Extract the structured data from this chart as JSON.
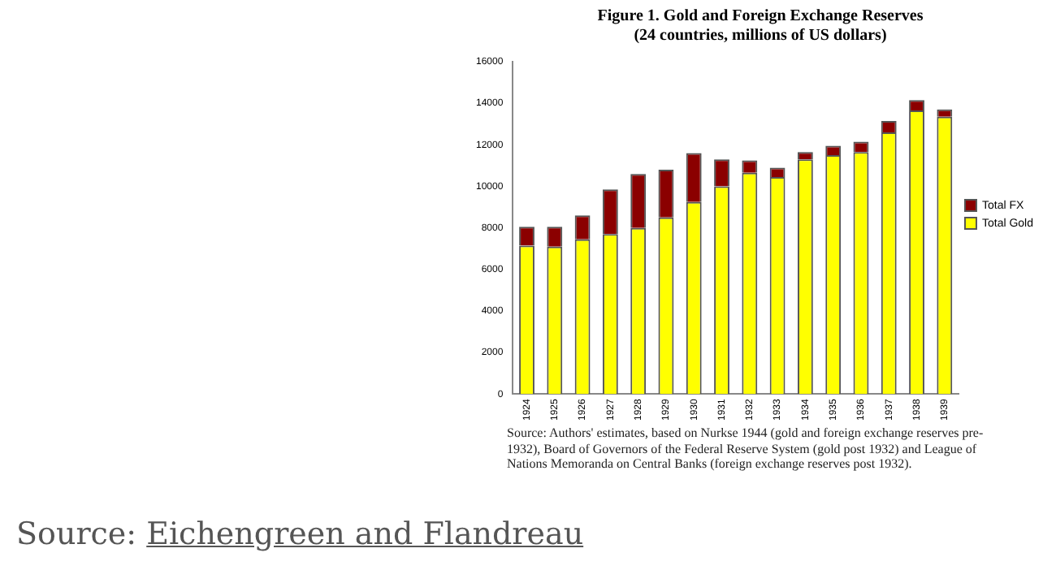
{
  "chart_data": {
    "type": "bar",
    "title": "Figure 1. Gold and Foreign Exchange Reserves",
    "subtitle": "(24 countries, millions of US dollars)",
    "categories": [
      "1924",
      "1925",
      "1926",
      "1927",
      "1928",
      "1929",
      "1930",
      "1931",
      "1932",
      "1933",
      "1934",
      "1935",
      "1936",
      "1937",
      "1938",
      "1939"
    ],
    "series": [
      {
        "name": "Total Gold",
        "color": "#ffff00",
        "values": [
          7150,
          7100,
          7450,
          7700,
          8000,
          8500,
          9250,
          10000,
          10650,
          10450,
          11300,
          11500,
          11650,
          12600,
          13650,
          13350
        ]
      },
      {
        "name": "Total FX",
        "color": "#8b0000",
        "values": [
          900,
          950,
          1150,
          2150,
          2600,
          2300,
          2350,
          1300,
          600,
          450,
          350,
          450,
          500,
          550,
          500,
          350
        ]
      }
    ],
    "stacked": true,
    "ylim": [
      0,
      16000
    ],
    "yticks": [
      0,
      2000,
      4000,
      6000,
      8000,
      10000,
      12000,
      14000,
      16000
    ],
    "grid": false,
    "legend": "right",
    "annotations": [
      "Source: Authors' estimates, based on Nurkse 1944 (gold and foreign exchange reserves pre-1932), Board of Governors of the Federal Reserve System (gold post 1932) and League of Nations Memoranda on Central Banks (foreign exchange reserves post 1932).",
      "Source: Eichengreen and Flandreau"
    ]
  }
}
